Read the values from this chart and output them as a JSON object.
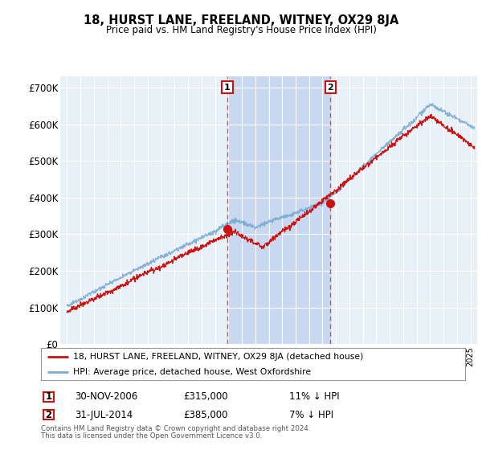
{
  "title": "18, HURST LANE, FREELAND, WITNEY, OX29 8JA",
  "subtitle": "Price paid vs. HM Land Registry's House Price Index (HPI)",
  "ylabel_ticks": [
    "£0",
    "£100K",
    "£200K",
    "£300K",
    "£400K",
    "£500K",
    "£600K",
    "£700K"
  ],
  "ytick_values": [
    0,
    100000,
    200000,
    300000,
    400000,
    500000,
    600000,
    700000
  ],
  "ylim": [
    0,
    730000
  ],
  "xlim_start": 1994.5,
  "xlim_end": 2025.5,
  "bg_color": "#ffffff",
  "chart_bg": "#e8f0f8",
  "shade_color": "#c8d8f0",
  "grid_color": "#ffffff",
  "hpi_color": "#7aaad0",
  "price_color": "#cc1111",
  "marker1_x": 2006.92,
  "marker1_y": 315000,
  "marker2_x": 2014.58,
  "marker2_y": 385000,
  "marker1_label": "1",
  "marker2_label": "2",
  "legend_line1": "18, HURST LANE, FREELAND, WITNEY, OX29 8JA (detached house)",
  "legend_line2": "HPI: Average price, detached house, West Oxfordshire",
  "table_row1": [
    "1",
    "30-NOV-2006",
    "£315,000",
    "11% ↓ HPI"
  ],
  "table_row2": [
    "2",
    "31-JUL-2014",
    "£385,000",
    "7% ↓ HPI"
  ],
  "footnote1": "Contains HM Land Registry data © Crown copyright and database right 2024.",
  "footnote2": "This data is licensed under the Open Government Licence v3.0."
}
